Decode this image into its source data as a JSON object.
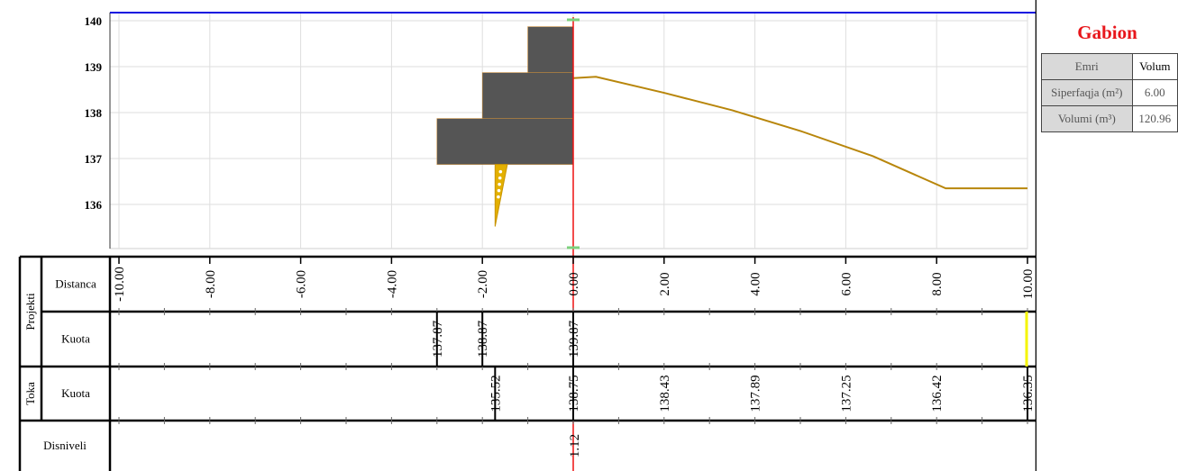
{
  "chart_data": {
    "type": "cross-section",
    "xlim": [
      -10,
      10
    ],
    "ylim": [
      135.15,
      140.15
    ],
    "y_ticks": [
      140,
      139,
      138,
      137,
      136
    ],
    "distance_ticks": [
      "-10.00",
      "-8.00",
      "-6.00",
      "-4.00",
      "-2.00",
      "0.00",
      "2.00",
      "4.00",
      "6.00",
      "8.00",
      "10.00"
    ],
    "gabion": {
      "steps": [
        {
          "x0": -3,
          "x1": 0,
          "y0": 136.87,
          "y1": 137.87
        },
        {
          "x0": -2,
          "x1": 0,
          "y0": 137.87,
          "y1": 138.87
        },
        {
          "x0": -1,
          "x1": 0,
          "y0": 138.87,
          "y1": 139.87
        }
      ],
      "color": "#555555"
    },
    "anchor": {
      "x_top": -1.72,
      "x_top2": -1.45,
      "x_bottom": -1.72,
      "y_top": 136.87,
      "y_bottom": 135.52,
      "color": "#e3b000"
    },
    "terrain": {
      "points": [
        [
          0.0,
          138.75
        ],
        [
          0.5,
          138.78
        ],
        [
          2.0,
          138.43
        ],
        [
          3.5,
          138.05
        ],
        [
          5.0,
          137.6
        ],
        [
          6.6,
          137.05
        ],
        [
          8.2,
          136.35
        ],
        [
          10.0,
          136.35
        ]
      ],
      "color": "#b8860b"
    },
    "axis_line": {
      "x": 0,
      "color": "#ee1111"
    },
    "top_line_color": "#1010e0",
    "projekti_kuota": [
      {
        "x": -3.0,
        "label": "137.87"
      },
      {
        "x": -2.0,
        "label": "138.87"
      },
      {
        "x": 0.0,
        "label": "139.87"
      }
    ],
    "toka_kuota": [
      {
        "x": -1.72,
        "label": "135.52"
      },
      {
        "x": 0.0,
        "label": "138.75"
      },
      {
        "x": 2.0,
        "label": "138.43"
      },
      {
        "x": 4.0,
        "label": "137.89"
      },
      {
        "x": 6.0,
        "label": "137.25"
      },
      {
        "x": 8.0,
        "label": "136.42"
      },
      {
        "x": 10.0,
        "label": "136.35"
      }
    ],
    "disniveli": [
      {
        "x": 0.0,
        "label": "1.12"
      }
    ]
  },
  "table": {
    "projekti_label": "Projekti",
    "toka_label": "Toka",
    "distanca_label": "Distanca",
    "kuota_label": "Kuota",
    "kuota_label_2": "Kuota",
    "disniveli_label": "Disniveli"
  },
  "info": {
    "title": "Gabion",
    "rows": [
      {
        "label": "Emri",
        "value": "Volum"
      },
      {
        "label": "Siperfaqja (m²)",
        "value": "6.00"
      },
      {
        "label": "Volumi (m³)",
        "value": "120.96"
      }
    ]
  }
}
